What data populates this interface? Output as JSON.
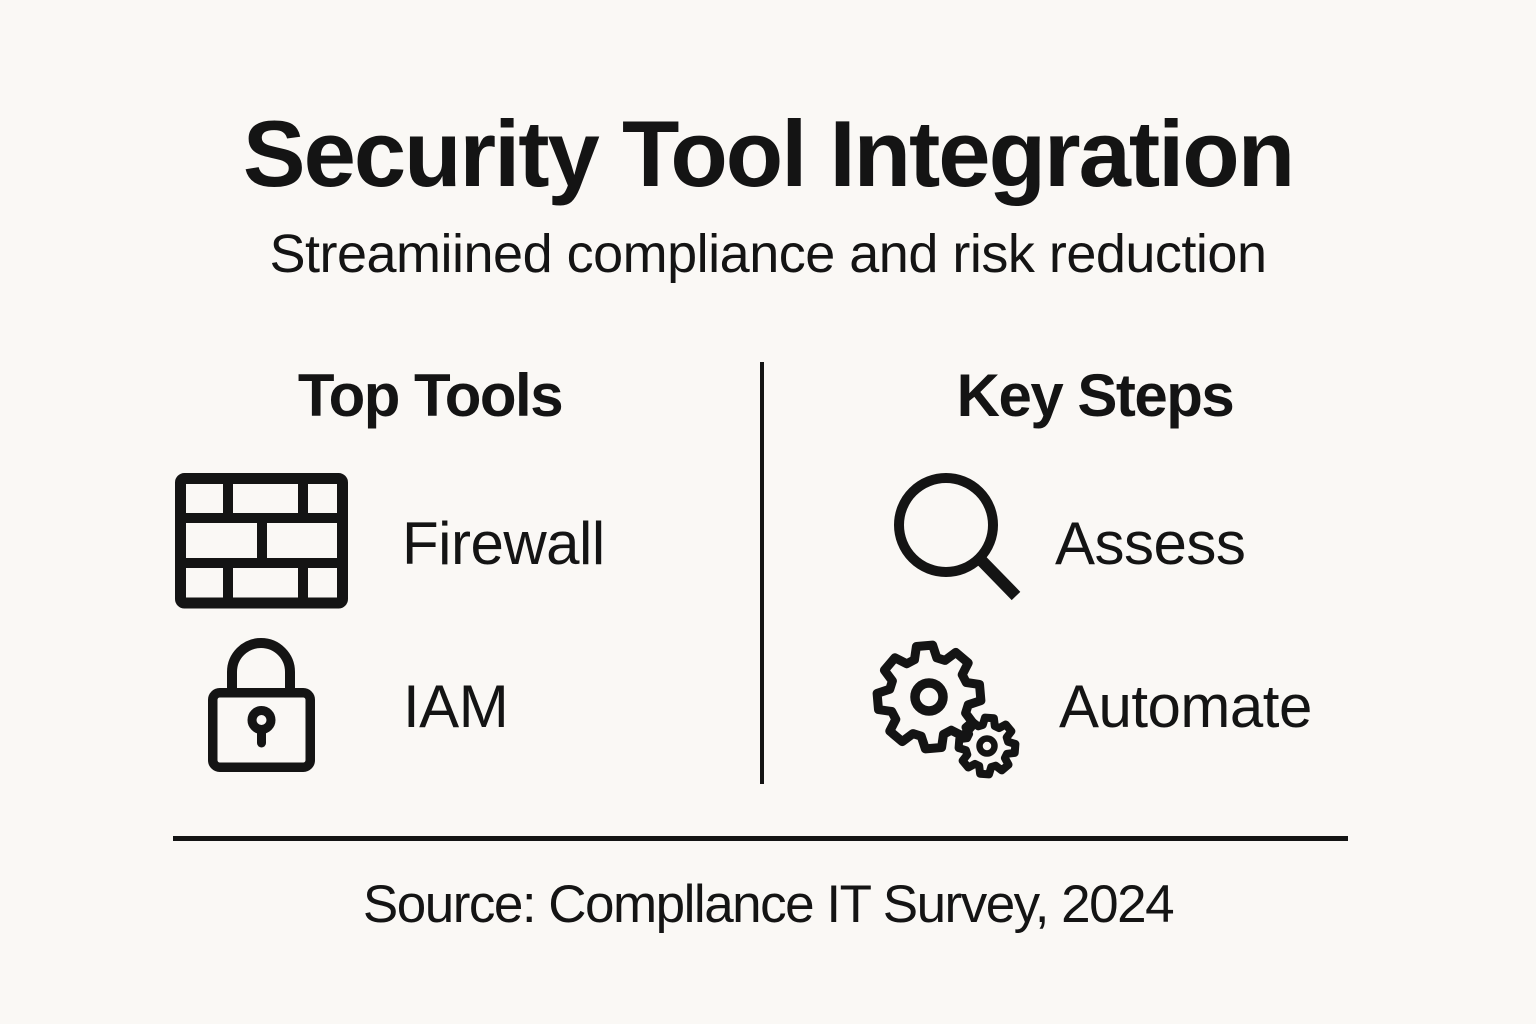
{
  "page": {
    "background": "#FAF8F5",
    "ink": "#141414"
  },
  "header": {
    "title": "Security Tool Integration",
    "subtitle": "Streamiined compliance and risk reduction"
  },
  "columns": {
    "left": {
      "heading": "Top Tools",
      "items": [
        {
          "icon": "brick-wall-firewall-icon",
          "label": "Firewall"
        },
        {
          "icon": "padlock-icon",
          "label": "IAM"
        }
      ]
    },
    "right": {
      "heading": "Key Steps",
      "items": [
        {
          "icon": "magnifying-glass-icon",
          "label": "Assess"
        },
        {
          "icon": "gears-icon",
          "label": "Automate"
        }
      ]
    }
  },
  "footer": {
    "source": "Source: Compllance IT Survey, 2024"
  }
}
